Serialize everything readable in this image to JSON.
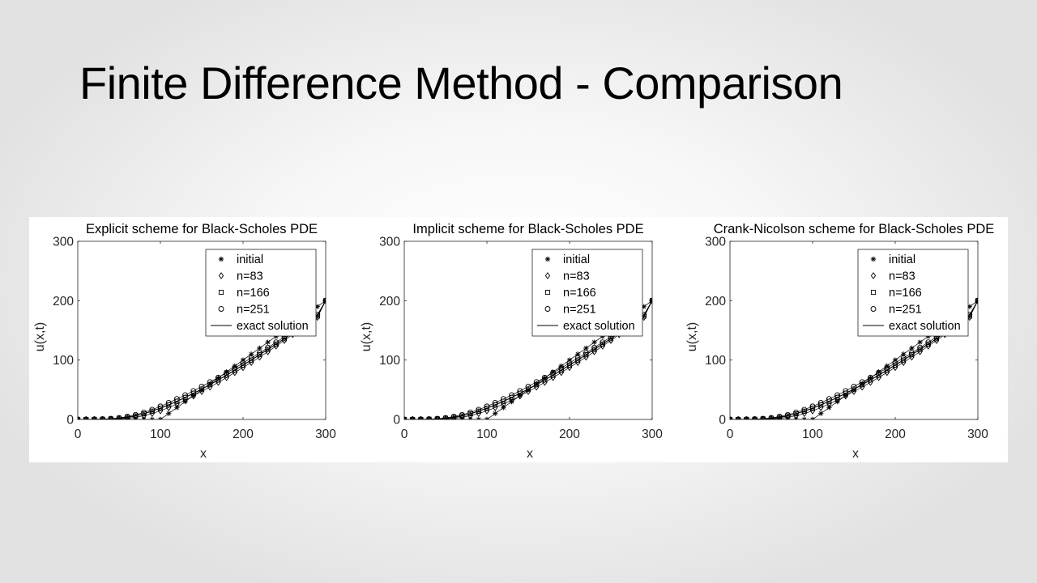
{
  "slide": {
    "title": "Finite Difference Method - Comparison"
  },
  "chart_data": [
    {
      "type": "line",
      "title": "Explicit scheme for Black-Scholes PDE",
      "xlabel": "x",
      "ylabel": "u(x,t)",
      "xlim": [
        0,
        300
      ],
      "ylim": [
        0,
        300
      ],
      "xticks": [
        "0",
        "100",
        "200",
        "300"
      ],
      "yticks": [
        "0",
        "100",
        "200",
        "300"
      ],
      "grid": false,
      "legend_position": "top-right",
      "series": [
        {
          "name": "initial",
          "marker": "star",
          "x": [
            0,
            10,
            20,
            30,
            40,
            50,
            60,
            70,
            80,
            90,
            100,
            110,
            120,
            130,
            140,
            150,
            160,
            170,
            180,
            190,
            200,
            210,
            220,
            230,
            240,
            250,
            260,
            270,
            280,
            290,
            300
          ],
          "y": [
            0,
            0,
            0,
            0,
            0,
            0,
            0,
            0,
            0,
            0,
            0,
            10,
            20,
            30,
            40,
            50,
            60,
            70,
            80,
            90,
            100,
            110,
            120,
            130,
            140,
            150,
            160,
            170,
            180,
            190,
            200
          ]
        },
        {
          "name": "n=83",
          "marker": "diamond",
          "x": [
            0,
            10,
            20,
            30,
            40,
            50,
            60,
            70,
            80,
            90,
            100,
            110,
            120,
            130,
            140,
            150,
            160,
            170,
            180,
            190,
            200,
            210,
            220,
            230,
            240,
            250,
            260,
            270,
            280,
            290,
            300
          ],
          "y": [
            0,
            0,
            0,
            0.1,
            0.3,
            0.8,
            1.8,
            3.6,
            6.3,
            10,
            14.5,
            20,
            26,
            32.5,
            39.5,
            47,
            54.5,
            62.5,
            70.5,
            79,
            87.5,
            96,
            105,
            114,
            123.5,
            133,
            143,
            152.5,
            162,
            172,
            200
          ]
        },
        {
          "name": "n=166",
          "marker": "square",
          "x": [
            0,
            10,
            20,
            30,
            40,
            50,
            60,
            70,
            80,
            90,
            100,
            110,
            120,
            130,
            140,
            150,
            160,
            170,
            180,
            190,
            200,
            210,
            220,
            230,
            240,
            250,
            260,
            270,
            280,
            290,
            300
          ],
          "y": [
            0,
            0,
            0.1,
            0.3,
            0.8,
            1.8,
            3.5,
            6,
            9.5,
            14,
            19,
            24.5,
            30.5,
            37,
            44,
            51,
            58.5,
            66.5,
            74.5,
            83,
            91.5,
            100,
            109,
            118,
            127,
            136,
            145.5,
            155,
            164.5,
            174,
            200
          ]
        },
        {
          "name": "n=251",
          "marker": "circle",
          "x": [
            0,
            10,
            20,
            30,
            40,
            50,
            60,
            70,
            80,
            90,
            100,
            110,
            120,
            130,
            140,
            150,
            160,
            170,
            180,
            190,
            200,
            210,
            220,
            230,
            240,
            250,
            260,
            270,
            280,
            290,
            300
          ],
          "y": [
            0,
            0.1,
            0.2,
            0.5,
            1.2,
            2.6,
            4.8,
            7.8,
            11.8,
            16.5,
            22,
            28,
            34.5,
            41,
            48,
            55.5,
            63,
            70.5,
            78.5,
            86.5,
            95,
            103.5,
            112,
            121,
            130,
            139,
            148,
            157.5,
            167,
            176.5,
            200
          ]
        },
        {
          "name": "exact solution",
          "marker": "none",
          "x": [
            0,
            10,
            20,
            30,
            40,
            50,
            60,
            70,
            80,
            90,
            100,
            110,
            120,
            130,
            140,
            150,
            160,
            170,
            180,
            190,
            200,
            210,
            220,
            230,
            240,
            250,
            260,
            270,
            280,
            290,
            300
          ],
          "y": [
            0,
            0,
            0.1,
            0.3,
            0.8,
            1.8,
            3.5,
            6,
            9.5,
            14,
            19,
            24.5,
            30.5,
            37,
            44,
            51,
            58.5,
            66.5,
            74.5,
            83,
            91.5,
            100,
            109,
            118,
            127,
            136,
            145.5,
            155,
            164.5,
            174,
            200
          ]
        }
      ]
    },
    {
      "type": "line",
      "title": "Implicit scheme for Black-Scholes PDE",
      "xlabel": "x",
      "ylabel": "u(x,t)",
      "xlim": [
        0,
        300
      ],
      "ylim": [
        0,
        300
      ],
      "xticks": [
        "0",
        "100",
        "200",
        "300"
      ],
      "yticks": [
        "0",
        "100",
        "200",
        "300"
      ],
      "grid": false,
      "legend_position": "top-right",
      "series": [
        {
          "name": "initial",
          "marker": "star",
          "x": [
            0,
            10,
            20,
            30,
            40,
            50,
            60,
            70,
            80,
            90,
            100,
            110,
            120,
            130,
            140,
            150,
            160,
            170,
            180,
            190,
            200,
            210,
            220,
            230,
            240,
            250,
            260,
            270,
            280,
            290,
            300
          ],
          "y": [
            0,
            0,
            0,
            0,
            0,
            0,
            0,
            0,
            0,
            0,
            0,
            10,
            20,
            30,
            40,
            50,
            60,
            70,
            80,
            90,
            100,
            110,
            120,
            130,
            140,
            150,
            160,
            170,
            180,
            190,
            200
          ]
        },
        {
          "name": "n=83",
          "marker": "diamond",
          "x": [
            0,
            10,
            20,
            30,
            40,
            50,
            60,
            70,
            80,
            90,
            100,
            110,
            120,
            130,
            140,
            150,
            160,
            170,
            180,
            190,
            200,
            210,
            220,
            230,
            240,
            250,
            260,
            270,
            280,
            290,
            300
          ],
          "y": [
            0,
            0,
            0,
            0.1,
            0.3,
            0.8,
            1.8,
            3.6,
            6.3,
            10,
            14.5,
            20,
            26,
            32.5,
            39.5,
            47,
            54.5,
            62.5,
            70.5,
            79,
            87.5,
            96,
            105,
            114,
            123.5,
            133,
            143,
            152.5,
            162,
            172,
            200
          ]
        },
        {
          "name": "n=166",
          "marker": "square",
          "x": [
            0,
            10,
            20,
            30,
            40,
            50,
            60,
            70,
            80,
            90,
            100,
            110,
            120,
            130,
            140,
            150,
            160,
            170,
            180,
            190,
            200,
            210,
            220,
            230,
            240,
            250,
            260,
            270,
            280,
            290,
            300
          ],
          "y": [
            0,
            0,
            0.1,
            0.3,
            0.8,
            1.8,
            3.5,
            6,
            9.5,
            14,
            19,
            24.5,
            30.5,
            37,
            44,
            51,
            58.5,
            66.5,
            74.5,
            83,
            91.5,
            100,
            109,
            118,
            127,
            136,
            145.5,
            155,
            164.5,
            174,
            200
          ]
        },
        {
          "name": "n=251",
          "marker": "circle",
          "x": [
            0,
            10,
            20,
            30,
            40,
            50,
            60,
            70,
            80,
            90,
            100,
            110,
            120,
            130,
            140,
            150,
            160,
            170,
            180,
            190,
            200,
            210,
            220,
            230,
            240,
            250,
            260,
            270,
            280,
            290,
            300
          ],
          "y": [
            0,
            0.1,
            0.2,
            0.5,
            1.2,
            2.6,
            4.8,
            7.8,
            11.8,
            16.5,
            22,
            28,
            34.5,
            41,
            48,
            55.5,
            63,
            70.5,
            78.5,
            86.5,
            95,
            103.5,
            112,
            121,
            130,
            139,
            148,
            157.5,
            167,
            176.5,
            200
          ]
        },
        {
          "name": "exact solution",
          "marker": "none",
          "x": [
            0,
            10,
            20,
            30,
            40,
            50,
            60,
            70,
            80,
            90,
            100,
            110,
            120,
            130,
            140,
            150,
            160,
            170,
            180,
            190,
            200,
            210,
            220,
            230,
            240,
            250,
            260,
            270,
            280,
            290,
            300
          ],
          "y": [
            0,
            0,
            0.1,
            0.3,
            0.8,
            1.8,
            3.5,
            6,
            9.5,
            14,
            19,
            24.5,
            30.5,
            37,
            44,
            51,
            58.5,
            66.5,
            74.5,
            83,
            91.5,
            100,
            109,
            118,
            127,
            136,
            145.5,
            155,
            164.5,
            174,
            200
          ]
        }
      ]
    },
    {
      "type": "line",
      "title": "Crank-Nicolson scheme for Black-Scholes PDE",
      "xlabel": "x",
      "ylabel": "u(x,t)",
      "xlim": [
        0,
        300
      ],
      "ylim": [
        0,
        300
      ],
      "xticks": [
        "0",
        "100",
        "200",
        "300"
      ],
      "yticks": [
        "0",
        "100",
        "200",
        "300"
      ],
      "grid": false,
      "legend_position": "top-right",
      "series": [
        {
          "name": "initial",
          "marker": "star",
          "x": [
            0,
            10,
            20,
            30,
            40,
            50,
            60,
            70,
            80,
            90,
            100,
            110,
            120,
            130,
            140,
            150,
            160,
            170,
            180,
            190,
            200,
            210,
            220,
            230,
            240,
            250,
            260,
            270,
            280,
            290,
            300
          ],
          "y": [
            0,
            0,
            0,
            0,
            0,
            0,
            0,
            0,
            0,
            0,
            0,
            10,
            20,
            30,
            40,
            50,
            60,
            70,
            80,
            90,
            100,
            110,
            120,
            130,
            140,
            150,
            160,
            170,
            180,
            190,
            200
          ]
        },
        {
          "name": "n=83",
          "marker": "diamond",
          "x": [
            0,
            10,
            20,
            30,
            40,
            50,
            60,
            70,
            80,
            90,
            100,
            110,
            120,
            130,
            140,
            150,
            160,
            170,
            180,
            190,
            200,
            210,
            220,
            230,
            240,
            250,
            260,
            270,
            280,
            290,
            300
          ],
          "y": [
            0,
            0,
            0,
            0.1,
            0.3,
            0.8,
            1.8,
            3.6,
            6.3,
            10,
            14.5,
            20,
            26,
            32.5,
            39.5,
            47,
            54.5,
            62.5,
            70.5,
            79,
            87.5,
            96,
            105,
            114,
            123.5,
            133,
            143,
            152.5,
            162,
            172,
            200
          ]
        },
        {
          "name": "n=166",
          "marker": "square",
          "x": [
            0,
            10,
            20,
            30,
            40,
            50,
            60,
            70,
            80,
            90,
            100,
            110,
            120,
            130,
            140,
            150,
            160,
            170,
            180,
            190,
            200,
            210,
            220,
            230,
            240,
            250,
            260,
            270,
            280,
            290,
            300
          ],
          "y": [
            0,
            0,
            0.1,
            0.3,
            0.8,
            1.8,
            3.5,
            6,
            9.5,
            14,
            19,
            24.5,
            30.5,
            37,
            44,
            51,
            58.5,
            66.5,
            74.5,
            83,
            91.5,
            100,
            109,
            118,
            127,
            136,
            145.5,
            155,
            164.5,
            174,
            200
          ]
        },
        {
          "name": "n=251",
          "marker": "circle",
          "x": [
            0,
            10,
            20,
            30,
            40,
            50,
            60,
            70,
            80,
            90,
            100,
            110,
            120,
            130,
            140,
            150,
            160,
            170,
            180,
            190,
            200,
            210,
            220,
            230,
            240,
            250,
            260,
            270,
            280,
            290,
            300
          ],
          "y": [
            0,
            0.1,
            0.2,
            0.5,
            1.2,
            2.6,
            4.8,
            7.8,
            11.8,
            16.5,
            22,
            28,
            34.5,
            41,
            48,
            55.5,
            63,
            70.5,
            78.5,
            86.5,
            95,
            103.5,
            112,
            121,
            130,
            139,
            148,
            157.5,
            167,
            176.5,
            200
          ]
        },
        {
          "name": "exact solution",
          "marker": "none",
          "x": [
            0,
            10,
            20,
            30,
            40,
            50,
            60,
            70,
            80,
            90,
            100,
            110,
            120,
            130,
            140,
            150,
            160,
            170,
            180,
            190,
            200,
            210,
            220,
            230,
            240,
            250,
            260,
            270,
            280,
            290,
            300
          ],
          "y": [
            0,
            0,
            0.1,
            0.3,
            0.8,
            1.8,
            3.5,
            6,
            9.5,
            14,
            19,
            24.5,
            30.5,
            37,
            44,
            51,
            58.5,
            66.5,
            74.5,
            83,
            91.5,
            100,
            109,
            118,
            127,
            136,
            145.5,
            155,
            164.5,
            174,
            200
          ]
        }
      ]
    }
  ]
}
